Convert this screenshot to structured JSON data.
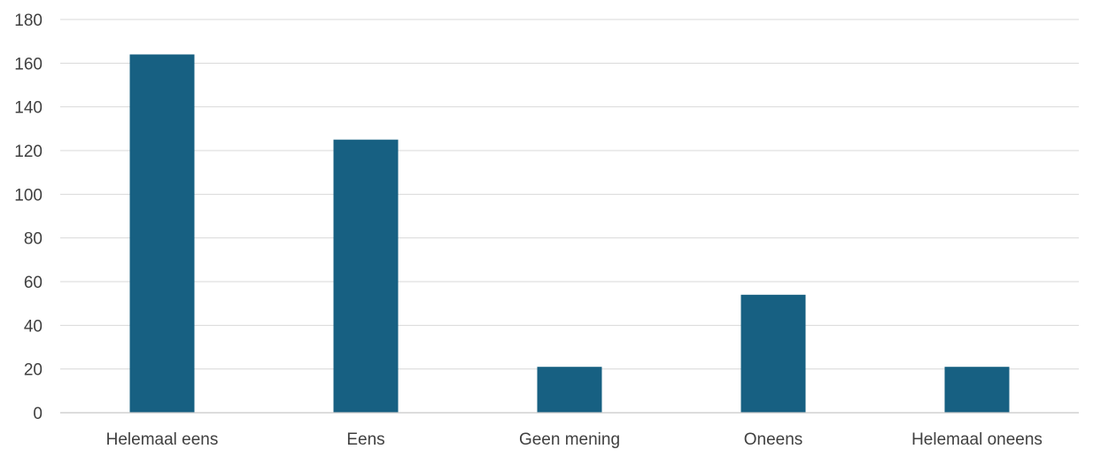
{
  "chart_data": {
    "type": "bar",
    "categories": [
      "Helemaal eens",
      "Eens",
      "Geen mening",
      "Oneens",
      "Helemaal oneens"
    ],
    "values": [
      164,
      125,
      21,
      54,
      21
    ],
    "title": "",
    "xlabel": "",
    "ylabel": "",
    "ylim": [
      0,
      180
    ],
    "yticks": [
      "0",
      "20",
      "40",
      "60",
      "80",
      "100",
      "120",
      "140",
      "160",
      "180"
    ],
    "grid": true,
    "legend": "none",
    "colors": {
      "bar": "#176082",
      "grid": "#d9d9d9",
      "axis": "#c8c8c8",
      "text": "#404040"
    }
  }
}
